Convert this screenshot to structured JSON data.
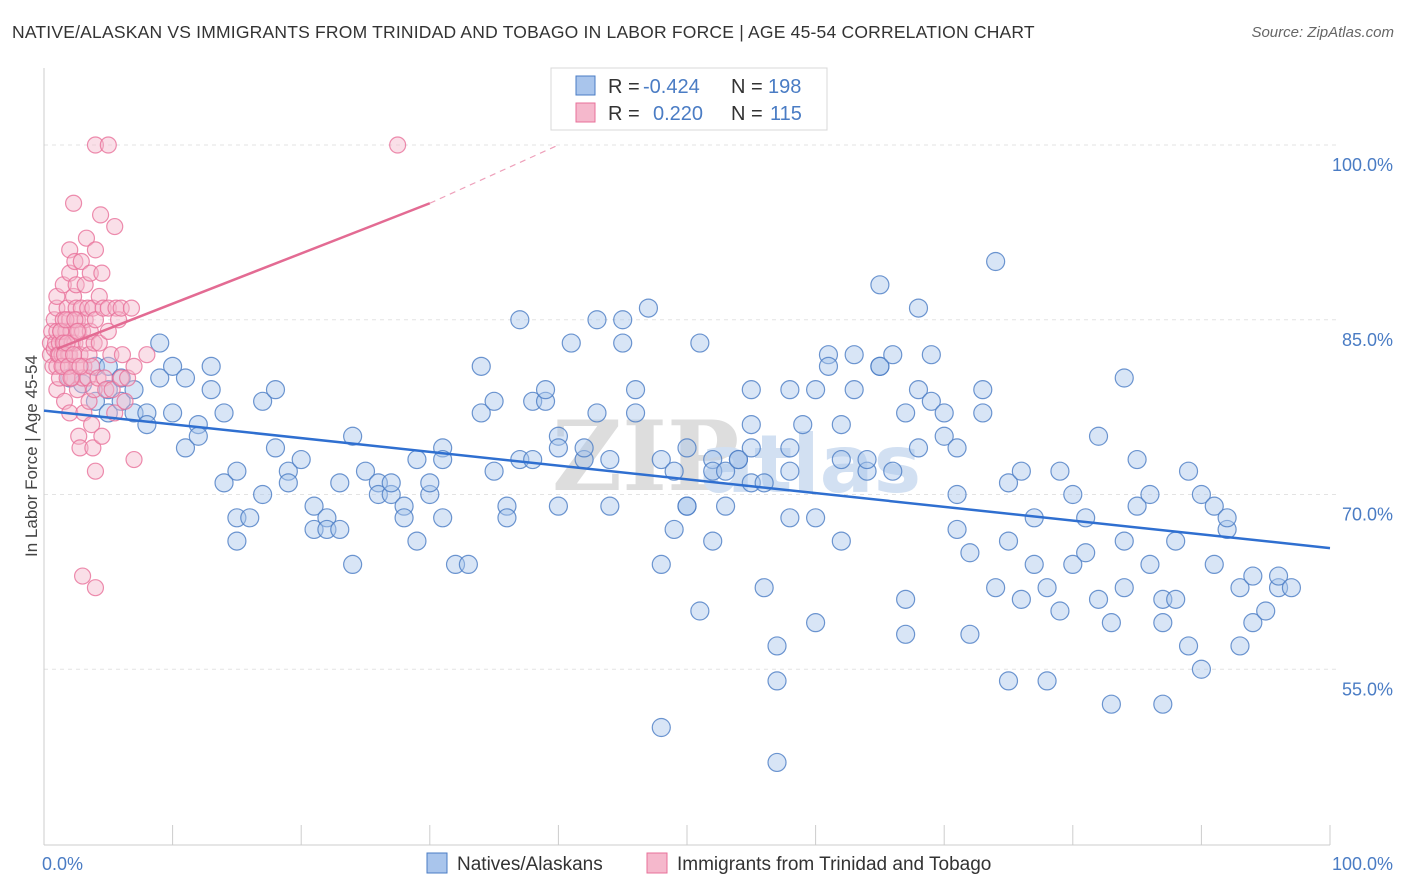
{
  "title": "NATIVE/ALASKAN VS IMMIGRANTS FROM TRINIDAD AND TOBAGO IN LABOR FORCE | AGE 45-54 CORRELATION CHART",
  "source": "Source: ZipAtlas.com",
  "watermark": {
    "zip": "ZIP",
    "atlas": "atlas"
  },
  "colors": {
    "blue": "#4a7cc4",
    "blue_fill": "#a9c5ec",
    "pink": "#e8709a",
    "pink_fill": "#f5b8cc",
    "grid": "#e3e3e3"
  },
  "stats": [
    {
      "r_label": "R =",
      "r_value": "-0.424",
      "n_label": "N =",
      "n_value": "198"
    },
    {
      "r_label": "R =",
      "r_value": "0.220",
      "n_label": "N =",
      "n_value": "115"
    }
  ],
  "chart_data": {
    "type": "scatter",
    "ylabel": "In Labor Force | Age 45-54",
    "xlim": [
      0,
      100
    ],
    "ylim": [
      40,
      102
    ],
    "y_ticks": [
      {
        "value": 100,
        "label": "100.0%"
      },
      {
        "value": 85,
        "label": "85.0%"
      },
      {
        "value": 70,
        "label": "70.0%"
      },
      {
        "value": 55,
        "label": "55.0%"
      }
    ],
    "x_tick_labels": [
      {
        "value": 0,
        "label": "0.0%"
      },
      {
        "value": 100,
        "label": "100.0%"
      }
    ],
    "legend": [
      "Natives/Alaskans",
      "Immigrants from Trinidad and Tobago"
    ],
    "series": [
      {
        "name": "Natives/Alaskans",
        "trend": {
          "x": [
            0,
            100
          ],
          "y": [
            77.2,
            65.4
          ]
        },
        "points": [
          [
            2,
            80
          ],
          [
            3,
            79.5
          ],
          [
            4,
            81
          ],
          [
            4,
            78
          ],
          [
            5,
            77
          ],
          [
            5,
            79
          ],
          [
            5,
            81
          ],
          [
            6,
            80
          ],
          [
            6,
            78
          ],
          [
            7,
            77
          ],
          [
            7,
            79
          ],
          [
            8,
            77
          ],
          [
            8,
            76
          ],
          [
            9,
            80
          ],
          [
            9,
            83
          ],
          [
            10,
            81
          ],
          [
            10,
            77
          ],
          [
            11,
            74
          ],
          [
            11,
            80
          ],
          [
            12,
            76
          ],
          [
            12,
            75
          ],
          [
            13,
            79
          ],
          [
            13,
            81
          ],
          [
            14,
            77
          ],
          [
            14,
            71
          ],
          [
            15,
            72
          ],
          [
            15,
            68
          ],
          [
            15,
            66
          ],
          [
            16,
            68
          ],
          [
            17,
            70
          ],
          [
            17,
            78
          ],
          [
            18,
            79
          ],
          [
            18,
            74
          ],
          [
            19,
            72
          ],
          [
            19,
            71
          ],
          [
            20,
            73
          ],
          [
            21,
            67
          ],
          [
            21,
            69
          ],
          [
            22,
            68
          ],
          [
            22,
            67
          ],
          [
            23,
            67
          ],
          [
            23,
            71
          ],
          [
            24,
            75
          ],
          [
            24,
            64
          ],
          [
            25,
            72
          ],
          [
            26,
            71
          ],
          [
            26,
            70
          ],
          [
            27,
            70
          ],
          [
            27,
            71
          ],
          [
            28,
            69
          ],
          [
            28,
            68
          ],
          [
            29,
            66
          ],
          [
            29,
            73
          ],
          [
            30,
            70
          ],
          [
            30,
            71
          ],
          [
            31,
            68
          ],
          [
            31,
            74
          ],
          [
            31,
            73
          ],
          [
            32,
            64
          ],
          [
            33,
            64
          ],
          [
            34,
            77
          ],
          [
            34,
            81
          ],
          [
            35,
            78
          ],
          [
            35,
            72
          ],
          [
            36,
            69
          ],
          [
            36,
            68
          ],
          [
            37,
            73
          ],
          [
            37,
            85
          ],
          [
            38,
            73
          ],
          [
            38,
            78
          ],
          [
            39,
            78
          ],
          [
            39,
            79
          ],
          [
            40,
            69
          ],
          [
            40,
            75
          ],
          [
            40,
            74
          ],
          [
            41,
            83
          ],
          [
            42,
            73
          ],
          [
            42,
            74
          ],
          [
            43,
            77
          ],
          [
            43,
            85
          ],
          [
            44,
            69
          ],
          [
            44,
            73
          ],
          [
            45,
            83
          ],
          [
            45,
            85
          ],
          [
            46,
            77
          ],
          [
            46,
            79
          ],
          [
            47,
            86
          ],
          [
            48,
            73
          ],
          [
            48,
            64
          ],
          [
            48,
            50
          ],
          [
            49,
            67
          ],
          [
            49,
            72
          ],
          [
            50,
            74
          ],
          [
            50,
            69
          ],
          [
            50,
            69
          ],
          [
            51,
            60
          ],
          [
            51,
            83
          ],
          [
            52,
            73
          ],
          [
            52,
            72
          ],
          [
            52,
            66
          ],
          [
            53,
            72
          ],
          [
            53,
            69
          ],
          [
            54,
            73
          ],
          [
            54,
            73
          ],
          [
            55,
            74
          ],
          [
            55,
            79
          ],
          [
            55,
            76
          ],
          [
            55,
            71
          ],
          [
            56,
            71
          ],
          [
            56,
            62
          ],
          [
            57,
            57
          ],
          [
            57,
            54
          ],
          [
            57,
            47
          ],
          [
            58,
            74
          ],
          [
            58,
            79
          ],
          [
            58,
            68
          ],
          [
            58,
            72
          ],
          [
            59,
            76
          ],
          [
            60,
            79
          ],
          [
            60,
            68
          ],
          [
            60,
            59
          ],
          [
            61,
            82
          ],
          [
            61,
            81
          ],
          [
            62,
            66
          ],
          [
            62,
            73
          ],
          [
            62,
            76
          ],
          [
            63,
            79
          ],
          [
            63,
            82
          ],
          [
            64,
            72
          ],
          [
            64,
            73
          ],
          [
            65,
            88
          ],
          [
            65,
            81
          ],
          [
            65,
            81
          ],
          [
            66,
            72
          ],
          [
            66,
            82
          ],
          [
            67,
            61
          ],
          [
            67,
            58
          ],
          [
            67,
            77
          ],
          [
            68,
            86
          ],
          [
            68,
            79
          ],
          [
            68,
            74
          ],
          [
            69,
            82
          ],
          [
            69,
            78
          ],
          [
            70,
            75
          ],
          [
            70,
            77
          ],
          [
            71,
            74
          ],
          [
            71,
            70
          ],
          [
            71,
            67
          ],
          [
            72,
            65
          ],
          [
            72,
            58
          ],
          [
            73,
            77
          ],
          [
            73,
            79
          ],
          [
            74,
            90
          ],
          [
            74,
            62
          ],
          [
            75,
            71
          ],
          [
            75,
            66
          ],
          [
            75,
            54
          ],
          [
            76,
            61
          ],
          [
            76,
            72
          ],
          [
            77,
            68
          ],
          [
            77,
            64
          ],
          [
            78,
            62
          ],
          [
            78,
            54
          ],
          [
            79,
            60
          ],
          [
            79,
            72
          ],
          [
            80,
            70
          ],
          [
            80,
            64
          ],
          [
            81,
            68
          ],
          [
            81,
            65
          ],
          [
            82,
            61
          ],
          [
            82,
            75
          ],
          [
            83,
            59
          ],
          [
            83,
            52
          ],
          [
            84,
            80
          ],
          [
            84,
            66
          ],
          [
            84,
            62
          ],
          [
            85,
            73
          ],
          [
            85,
            69
          ],
          [
            86,
            70
          ],
          [
            86,
            64
          ],
          [
            87,
            61
          ],
          [
            87,
            59
          ],
          [
            87,
            52
          ],
          [
            88,
            66
          ],
          [
            88,
            61
          ],
          [
            89,
            72
          ],
          [
            89,
            57
          ],
          [
            90,
            70
          ],
          [
            90,
            55
          ],
          [
            91,
            69
          ],
          [
            91,
            64
          ],
          [
            92,
            67
          ],
          [
            92,
            68
          ],
          [
            93,
            62
          ],
          [
            93,
            57
          ],
          [
            94,
            63
          ],
          [
            94,
            59
          ],
          [
            95,
            60
          ],
          [
            96,
            62
          ],
          [
            96,
            63
          ],
          [
            97,
            62
          ]
        ]
      },
      {
        "name": "Immigrants from Trinidad and Tobago",
        "trend": {
          "x": [
            1,
            30
          ],
          "y": [
            82.5,
            95
          ]
        },
        "trend_dashed": {
          "x": [
            30,
            40
          ],
          "y": [
            95,
            100
          ]
        },
        "points": [
          [
            0.5,
            82
          ],
          [
            0.5,
            83
          ],
          [
            0.6,
            84
          ],
          [
            0.7,
            81
          ],
          [
            0.8,
            82.5
          ],
          [
            0.8,
            85
          ],
          [
            0.9,
            83
          ],
          [
            1,
            84
          ],
          [
            1,
            81
          ],
          [
            1,
            86
          ],
          [
            1,
            87
          ],
          [
            1,
            79
          ],
          [
            1.1,
            82
          ],
          [
            1.2,
            83
          ],
          [
            1.2,
            80
          ],
          [
            1.3,
            84
          ],
          [
            1.4,
            82
          ],
          [
            1.5,
            85
          ],
          [
            1.5,
            81
          ],
          [
            1.5,
            88
          ],
          [
            1.6,
            83
          ],
          [
            1.6,
            78
          ],
          [
            1.7,
            84
          ],
          [
            1.8,
            80
          ],
          [
            1.8,
            86
          ],
          [
            1.9,
            82
          ],
          [
            2,
            82
          ],
          [
            2,
            85
          ],
          [
            2,
            89
          ],
          [
            2,
            91
          ],
          [
            2,
            77
          ],
          [
            2.1,
            84
          ],
          [
            2.2,
            80
          ],
          [
            2.2,
            83
          ],
          [
            2.3,
            87
          ],
          [
            2.3,
            95
          ],
          [
            2.4,
            83
          ],
          [
            2.4,
            90
          ],
          [
            2.5,
            81
          ],
          [
            2.5,
            86
          ],
          [
            2.5,
            88
          ],
          [
            2.6,
            85
          ],
          [
            2.6,
            79
          ],
          [
            2.7,
            84
          ],
          [
            2.7,
            75
          ],
          [
            2.8,
            82
          ],
          [
            2.8,
            74
          ],
          [
            2.9,
            86
          ],
          [
            2.9,
            90
          ],
          [
            3,
            84
          ],
          [
            3,
            80
          ],
          [
            3,
            63
          ],
          [
            3.1,
            81
          ],
          [
            3.1,
            77
          ],
          [
            3.2,
            85
          ],
          [
            3.2,
            88
          ],
          [
            3.3,
            83
          ],
          [
            3.3,
            92
          ],
          [
            3.4,
            86
          ],
          [
            3.4,
            80
          ],
          [
            3.5,
            82
          ],
          [
            3.5,
            78
          ],
          [
            3.6,
            84
          ],
          [
            3.6,
            89
          ],
          [
            3.7,
            81
          ],
          [
            3.7,
            76
          ],
          [
            3.8,
            86
          ],
          [
            3.8,
            74
          ],
          [
            3.9,
            83
          ],
          [
            3.9,
            79
          ],
          [
            4,
            100
          ],
          [
            4,
            85
          ],
          [
            4,
            91
          ],
          [
            4,
            72
          ],
          [
            4,
            62
          ],
          [
            4.2,
            80
          ],
          [
            4.3,
            83
          ],
          [
            4.3,
            87
          ],
          [
            4.4,
            94
          ],
          [
            4.5,
            75
          ],
          [
            4.5,
            89
          ],
          [
            4.6,
            86
          ],
          [
            4.7,
            80
          ],
          [
            4.8,
            79
          ],
          [
            5,
            84
          ],
          [
            5,
            100
          ],
          [
            5,
            86
          ],
          [
            5.2,
            82
          ],
          [
            5.3,
            79
          ],
          [
            5.5,
            93
          ],
          [
            5.5,
            77
          ],
          [
            5.6,
            86
          ],
          [
            5.8,
            85
          ],
          [
            6,
            86
          ],
          [
            6,
            80
          ],
          [
            6.1,
            82
          ],
          [
            6.3,
            78
          ],
          [
            6.5,
            80
          ],
          [
            6.8,
            86
          ],
          [
            7,
            81
          ],
          [
            7,
            73
          ],
          [
            8,
            82
          ],
          [
            27.5,
            100
          ],
          [
            1.2,
            82
          ],
          [
            1.3,
            84
          ],
          [
            1.4,
            81
          ],
          [
            1.5,
            83
          ],
          [
            1.6,
            82
          ],
          [
            1.7,
            85
          ],
          [
            1.8,
            83
          ],
          [
            1.9,
            81
          ],
          [
            2.1,
            80
          ],
          [
            2.3,
            82
          ],
          [
            2.4,
            85
          ],
          [
            2.6,
            84
          ],
          [
            2.8,
            81
          ]
        ]
      }
    ]
  }
}
